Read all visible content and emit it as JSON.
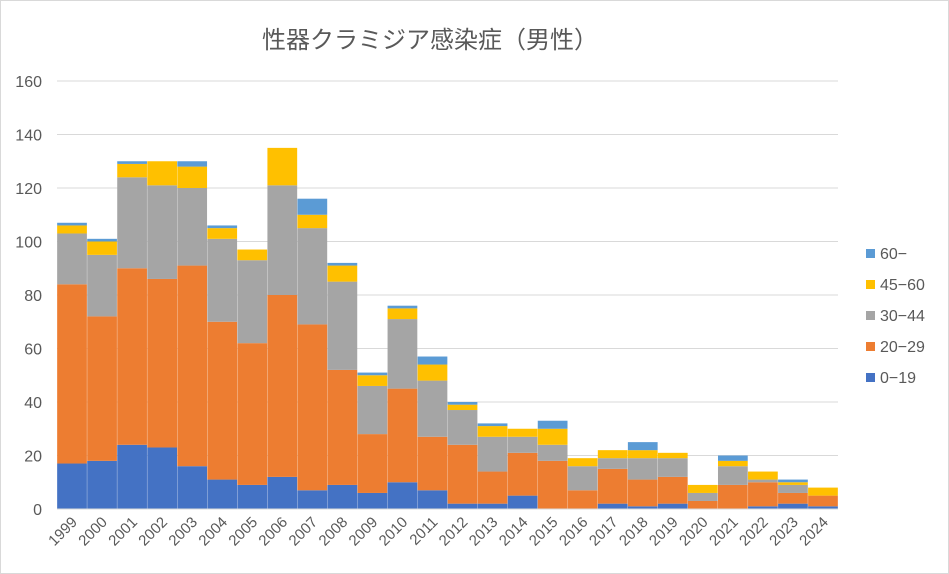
{
  "chart_data": {
    "type": "bar",
    "stacked": true,
    "title": "性器クラミジア感染症（男性）",
    "xlabel": "",
    "ylabel": "",
    "ylim": [
      0,
      160
    ],
    "yticks": [
      0,
      20,
      40,
      60,
      80,
      100,
      120,
      140,
      160
    ],
    "grid": true,
    "legend_position": "right",
    "categories": [
      "1999",
      "2000",
      "2001",
      "2002",
      "2003",
      "2004",
      "2005",
      "2006",
      "2007",
      "2008",
      "2009",
      "2010",
      "2011",
      "2012",
      "2013",
      "2014",
      "2015",
      "2016",
      "2017",
      "2018",
      "2019",
      "2020",
      "2021",
      "2022",
      "2023",
      "2024"
    ],
    "series": [
      {
        "name": "0-19",
        "color": "#4472c4",
        "values": [
          17,
          18,
          24,
          23,
          16,
          11,
          9,
          12,
          7,
          9,
          6,
          10,
          7,
          2,
          2,
          5,
          0,
          0,
          2,
          1,
          2,
          0,
          0,
          1,
          2,
          1
        ]
      },
      {
        "name": "20-29",
        "color": "#ed7d31",
        "values": [
          67,
          54,
          66,
          63,
          75,
          59,
          53,
          68,
          62,
          43,
          22,
          35,
          20,
          22,
          12,
          16,
          18,
          7,
          13,
          10,
          10,
          3,
          9,
          9,
          4,
          4
        ]
      },
      {
        "name": "30-44",
        "color": "#a5a5a5",
        "values": [
          19,
          23,
          34,
          35,
          29,
          31,
          31,
          41,
          36,
          33,
          18,
          26,
          21,
          13,
          13,
          6,
          6,
          9,
          4,
          8,
          7,
          3,
          7,
          1,
          3,
          0
        ]
      },
      {
        "name": "45-60",
        "color": "#ffc000",
        "values": [
          3,
          5,
          5,
          9,
          8,
          4,
          4,
          14,
          5,
          6,
          4,
          4,
          6,
          2,
          4,
          3,
          6,
          3,
          3,
          3,
          2,
          3,
          2,
          3,
          1,
          3
        ]
      },
      {
        "name": "60-",
        "color": "#5b9bd5",
        "values": [
          1,
          1,
          1,
          0,
          2,
          1,
          0,
          0,
          6,
          1,
          1,
          1,
          3,
          1,
          1,
          0,
          3,
          0,
          0,
          3,
          0,
          0,
          2,
          0,
          1,
          0
        ]
      }
    ]
  },
  "legend_order": [
    "60-",
    "45-60",
    "30-44",
    "20-29",
    "0-19"
  ],
  "legend_labels": [
    "60−",
    "45−60",
    "30−44",
    "20−29",
    "0−19"
  ]
}
